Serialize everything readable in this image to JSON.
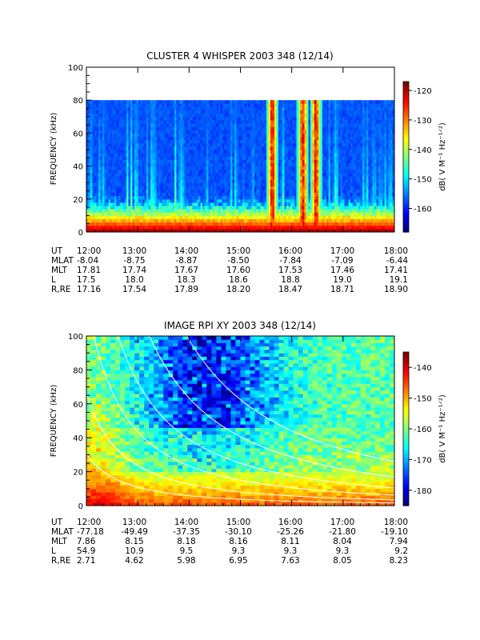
{
  "chart_data": [
    {
      "type": "heatmap",
      "title": "CLUSTER 4 WHISPER 2003 348 (12/14)",
      "ylabel": "FREQUENCY (kHz)",
      "ylim": [
        0,
        100
      ],
      "xlim": [
        "12:00",
        "18:00"
      ],
      "yticks": [
        "0",
        "20",
        "40",
        "60",
        "80",
        "100"
      ],
      "xticks": [
        "12:00",
        "13:00",
        "14:00",
        "15:00",
        "16:00",
        "17:00",
        "18:00"
      ],
      "data_frequency_max_khz": 80,
      "colorbar": {
        "label": "dB( V M⁻¹ Hz⁻¹ᐟ²)",
        "range": [
          -168,
          -117
        ],
        "ticks": [
          "-120",
          "-130",
          "-140",
          "-150",
          "-160"
        ]
      },
      "description_features": {
        "background_level_db": -160,
        "low_frequency_band_db": -128,
        "intense_bursts_utc": [
          15.6,
          16.2,
          16.45
        ]
      },
      "ephemeris": {
        "rows": [
          {
            "label": "UT",
            "values": [
              "12:00",
              "13:00",
              "14:00",
              "15:00",
              "16:00",
              "17:00",
              "18:00"
            ]
          },
          {
            "label": "MLAT",
            "values": [
              "-8.04",
              "-8.75",
              "-8.87",
              "-8.50",
              "-7.84",
              "-7.09",
              "-6.44"
            ]
          },
          {
            "label": "MLT",
            "values": [
              "17.81",
              "17.74",
              "17.67",
              "17.60",
              "17.53",
              "17.46",
              "17.41"
            ]
          },
          {
            "label": "L",
            "values": [
              "17.5",
              "18.0",
              "18.3",
              "18.6",
              "18.8",
              "19.0",
              "19.1"
            ]
          },
          {
            "label": "R,RE",
            "values": [
              "17.16",
              "17.54",
              "17.89",
              "18.20",
              "18.47",
              "18.71",
              "18.90"
            ]
          }
        ]
      }
    },
    {
      "type": "heatmap",
      "title": "IMAGE RPI XY 2003 348 (12/14)",
      "ylabel": "FREQUENCY (kHz)",
      "ylim": [
        0,
        100
      ],
      "xlim": [
        "12:00",
        "18:00"
      ],
      "yticks": [
        "0",
        "20",
        "40",
        "60",
        "80",
        "100"
      ],
      "xticks": [
        "12:00",
        "13:00",
        "14:00",
        "15:00",
        "16:00",
        "17:00",
        "18:00"
      ],
      "colorbar": {
        "label": "dB( V M⁻¹ Hz⁻¹ᐟ²)",
        "range": [
          -185,
          -135
        ],
        "ticks": [
          "-140",
          "-150",
          "-160",
          "-170",
          "-180"
        ]
      },
      "description_features": {
        "background_level_db": -162,
        "low_frequency_band_db": -143,
        "overlay_curves": "white"
      },
      "ephemeris": {
        "rows": [
          {
            "label": "UT",
            "values": [
              "12:00",
              "13:00",
              "14:00",
              "15:00",
              "16:00",
              "17:00",
              "18:00"
            ]
          },
          {
            "label": "MLAT",
            "values": [
              "-77.18",
              "-49.49",
              "-37.35",
              "-30.10",
              "-25.26",
              "-21.80",
              "-19.10"
            ]
          },
          {
            "label": "MLT",
            "values": [
              "7.86",
              "8.15",
              "8.18",
              "8.16",
              "8.11",
              "8.04",
              "7.94"
            ]
          },
          {
            "label": "L",
            "values": [
              "54.9",
              "10.9",
              "9.5",
              "9.3",
              "9.3",
              "9.3",
              "9.2"
            ]
          },
          {
            "label": "R,RE",
            "values": [
              "2.71",
              "4.62",
              "5.98",
              "6.95",
              "7.63",
              "8.05",
              "8.23"
            ]
          }
        ]
      }
    }
  ]
}
